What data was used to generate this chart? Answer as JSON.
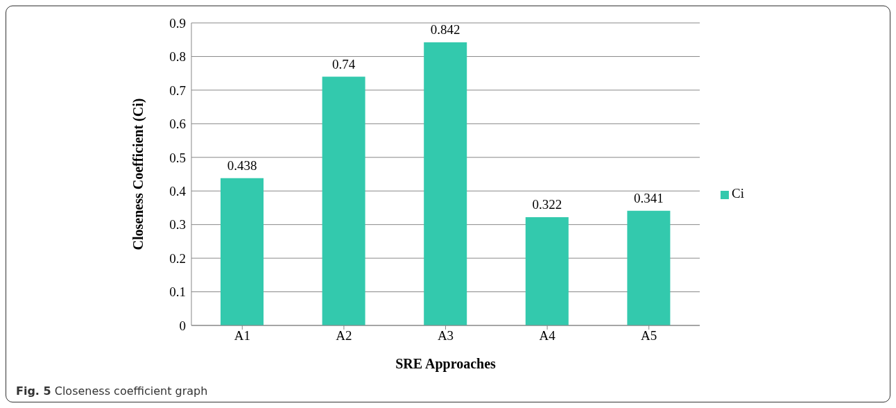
{
  "chart_data": {
    "type": "bar",
    "xlabel": "SRE Approaches",
    "ylabel": "Closeness Coefficient (Ci)",
    "categories": [
      "A1",
      "A2",
      "A3",
      "A4",
      "A5"
    ],
    "series": [
      {
        "name": "Ci",
        "color": "#33c9ad",
        "values": [
          0.438,
          0.74,
          0.842,
          0.322,
          0.341
        ]
      }
    ],
    "ylim": [
      0,
      0.9
    ],
    "yticks": [
      0,
      0.1,
      0.2,
      0.3,
      0.4,
      0.5,
      0.6,
      0.7,
      0.8,
      0.9
    ],
    "grid": "y",
    "legend": "right",
    "data_labels": true,
    "annotations": [
      "Fig. 5 Closeness coefficient graph"
    ]
  }
}
